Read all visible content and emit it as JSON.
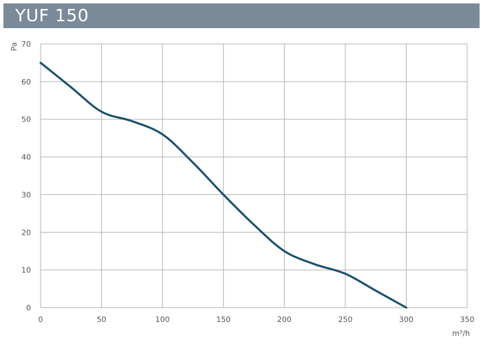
{
  "chart_data": {
    "type": "line",
    "title": "YUF 150",
    "xlabel": "m³/h",
    "ylabel": "Pa",
    "xlim": [
      0,
      350
    ],
    "ylim": [
      0,
      70
    ],
    "x_ticks": [
      0,
      50,
      100,
      150,
      200,
      250,
      300,
      350
    ],
    "y_ticks": [
      0,
      10,
      20,
      30,
      40,
      50,
      60,
      70
    ],
    "grid": true,
    "colors": {
      "line": "#1b4f6c",
      "grid": "#b3b3b3",
      "title_bg": "#7a8a99"
    },
    "series": [
      {
        "x": [
          0,
          25,
          50,
          75,
          100,
          125,
          150,
          175,
          200,
          225,
          250,
          275,
          300
        ],
        "values": [
          65,
          58.5,
          52,
          49.5,
          46,
          38.5,
          30,
          22,
          15,
          11.5,
          9,
          4.5,
          0
        ]
      }
    ]
  }
}
